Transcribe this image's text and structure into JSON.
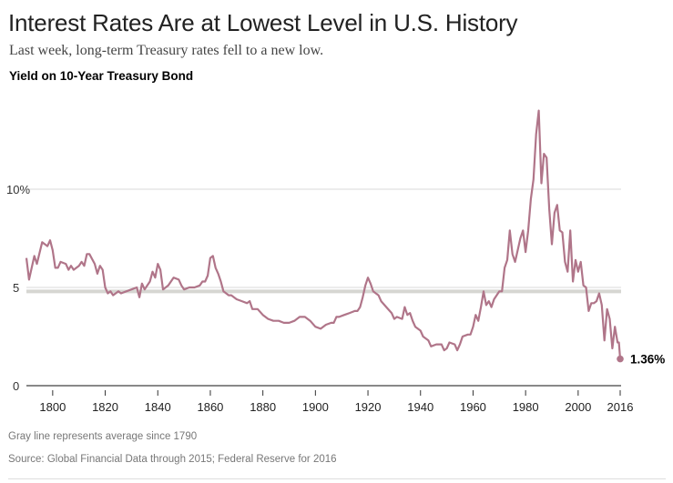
{
  "header": {
    "title": "Interest Rates Are at Lowest Level in U.S. History",
    "subtitle": "Last week, long-term Treasury rates fell to a new low.",
    "chart_label": "Yield on 10-Year Treasury Bond"
  },
  "footer": {
    "note": "Gray line represents average since 1790",
    "source": "Source: Global Financial Data through 2015; Federal Reserve for 2016"
  },
  "colors": {
    "line": "#b07589",
    "average": "#d6d6d2",
    "grid": "#e0e0e0",
    "axis": "#888888"
  },
  "chart_data": {
    "type": "line",
    "title": "Yield on 10-Year Treasury Bond",
    "xlabel": "",
    "ylabel": "",
    "xlim": [
      1790,
      2016
    ],
    "ylim": [
      0,
      14
    ],
    "grid": true,
    "y_ticks": [
      {
        "value": 0,
        "label": "0"
      },
      {
        "value": 5,
        "label": "5"
      },
      {
        "value": 10,
        "label": "10%"
      }
    ],
    "x_ticks": [
      {
        "value": 1800,
        "label": "1800"
      },
      {
        "value": 1820,
        "label": "1820"
      },
      {
        "value": 1840,
        "label": "1840"
      },
      {
        "value": 1860,
        "label": "1860"
      },
      {
        "value": 1880,
        "label": "1880"
      },
      {
        "value": 1900,
        "label": "1900"
      },
      {
        "value": 1920,
        "label": "1920"
      },
      {
        "value": 1940,
        "label": "1940"
      },
      {
        "value": 1960,
        "label": "1960"
      },
      {
        "value": 1980,
        "label": "1980"
      },
      {
        "value": 2000,
        "label": "2000"
      },
      {
        "value": 2016,
        "label": "2016"
      }
    ],
    "average": {
      "label": "Average since 1790",
      "value": 4.8
    },
    "end_label": {
      "year": 2016,
      "value": 1.36,
      "label": "1.36%"
    },
    "series": [
      {
        "name": "10-Year Treasury yield",
        "points": [
          [
            1790,
            6.5
          ],
          [
            1791,
            5.4
          ],
          [
            1793,
            6.6
          ],
          [
            1794,
            6.2
          ],
          [
            1796,
            7.3
          ],
          [
            1798,
            7.1
          ],
          [
            1799,
            7.4
          ],
          [
            1800,
            6.9
          ],
          [
            1801,
            6.0
          ],
          [
            1802,
            6.0
          ],
          [
            1803,
            6.3
          ],
          [
            1805,
            6.2
          ],
          [
            1806,
            5.9
          ],
          [
            1807,
            6.1
          ],
          [
            1808,
            5.9
          ],
          [
            1810,
            6.1
          ],
          [
            1811,
            6.3
          ],
          [
            1812,
            6.1
          ],
          [
            1813,
            6.7
          ],
          [
            1814,
            6.7
          ],
          [
            1816,
            6.2
          ],
          [
            1817,
            5.7
          ],
          [
            1818,
            6.1
          ],
          [
            1819,
            5.9
          ],
          [
            1820,
            5.0
          ],
          [
            1821,
            4.7
          ],
          [
            1822,
            4.8
          ],
          [
            1823,
            4.6
          ],
          [
            1825,
            4.8
          ],
          [
            1826,
            4.7
          ],
          [
            1828,
            4.8
          ],
          [
            1830,
            4.9
          ],
          [
            1832,
            5.0
          ],
          [
            1833,
            4.5
          ],
          [
            1834,
            5.2
          ],
          [
            1835,
            4.9
          ],
          [
            1837,
            5.3
          ],
          [
            1838,
            5.8
          ],
          [
            1839,
            5.5
          ],
          [
            1840,
            6.2
          ],
          [
            1841,
            5.9
          ],
          [
            1842,
            4.9
          ],
          [
            1844,
            5.1
          ],
          [
            1846,
            5.5
          ],
          [
            1848,
            5.4
          ],
          [
            1849,
            5.1
          ],
          [
            1850,
            4.9
          ],
          [
            1852,
            5.0
          ],
          [
            1854,
            5.0
          ],
          [
            1856,
            5.1
          ],
          [
            1857,
            5.3
          ],
          [
            1858,
            5.3
          ],
          [
            1859,
            5.6
          ],
          [
            1860,
            6.5
          ],
          [
            1861,
            6.6
          ],
          [
            1862,
            6.0
          ],
          [
            1863,
            5.7
          ],
          [
            1864,
            5.3
          ],
          [
            1865,
            4.8
          ],
          [
            1867,
            4.6
          ],
          [
            1868,
            4.6
          ],
          [
            1870,
            4.4
          ],
          [
            1872,
            4.3
          ],
          [
            1874,
            4.2
          ],
          [
            1875,
            4.3
          ],
          [
            1876,
            3.9
          ],
          [
            1878,
            3.9
          ],
          [
            1880,
            3.6
          ],
          [
            1882,
            3.4
          ],
          [
            1884,
            3.3
          ],
          [
            1886,
            3.3
          ],
          [
            1888,
            3.2
          ],
          [
            1890,
            3.2
          ],
          [
            1892,
            3.3
          ],
          [
            1894,
            3.5
          ],
          [
            1896,
            3.5
          ],
          [
            1898,
            3.3
          ],
          [
            1900,
            3.0
          ],
          [
            1902,
            2.9
          ],
          [
            1904,
            3.1
          ],
          [
            1906,
            3.2
          ],
          [
            1907,
            3.2
          ],
          [
            1908,
            3.5
          ],
          [
            1909,
            3.5
          ],
          [
            1911,
            3.6
          ],
          [
            1913,
            3.7
          ],
          [
            1915,
            3.8
          ],
          [
            1916,
            3.8
          ],
          [
            1917,
            4.0
          ],
          [
            1918,
            4.5
          ],
          [
            1919,
            5.1
          ],
          [
            1920,
            5.5
          ],
          [
            1921,
            5.2
          ],
          [
            1922,
            4.8
          ],
          [
            1923,
            4.7
          ],
          [
            1924,
            4.6
          ],
          [
            1925,
            4.3
          ],
          [
            1927,
            4.0
          ],
          [
            1929,
            3.7
          ],
          [
            1930,
            3.4
          ],
          [
            1931,
            3.5
          ],
          [
            1933,
            3.4
          ],
          [
            1934,
            4.0
          ],
          [
            1935,
            3.6
          ],
          [
            1936,
            3.7
          ],
          [
            1937,
            3.3
          ],
          [
            1938,
            3.0
          ],
          [
            1940,
            2.8
          ],
          [
            1941,
            2.5
          ],
          [
            1943,
            2.3
          ],
          [
            1944,
            2.0
          ],
          [
            1946,
            2.1
          ],
          [
            1948,
            2.1
          ],
          [
            1949,
            1.8
          ],
          [
            1950,
            1.9
          ],
          [
            1951,
            2.2
          ],
          [
            1953,
            2.1
          ],
          [
            1954,
            1.8
          ],
          [
            1955,
            2.1
          ],
          [
            1956,
            2.5
          ],
          [
            1958,
            2.6
          ],
          [
            1959,
            2.6
          ],
          [
            1960,
            3.0
          ],
          [
            1961,
            3.6
          ],
          [
            1962,
            3.3
          ],
          [
            1963,
            4.0
          ],
          [
            1964,
            4.8
          ],
          [
            1965,
            4.1
          ],
          [
            1966,
            4.3
          ],
          [
            1967,
            4.0
          ],
          [
            1968,
            4.4
          ],
          [
            1969,
            4.6
          ],
          [
            1970,
            4.8
          ],
          [
            1971,
            4.8
          ],
          [
            1972,
            6.0
          ],
          [
            1973,
            6.4
          ],
          [
            1974,
            7.9
          ],
          [
            1975,
            6.7
          ],
          [
            1976,
            6.3
          ],
          [
            1977,
            6.9
          ],
          [
            1978,
            7.5
          ],
          [
            1979,
            7.9
          ],
          [
            1980,
            6.8
          ],
          [
            1981,
            7.9
          ],
          [
            1982,
            9.5
          ],
          [
            1983,
            10.5
          ],
          [
            1984,
            12.8
          ],
          [
            1985,
            14.0
          ],
          [
            1986,
            10.3
          ],
          [
            1987,
            11.8
          ],
          [
            1988,
            11.6
          ],
          [
            1989,
            9.0
          ],
          [
            1990,
            7.2
          ],
          [
            1991,
            8.8
          ],
          [
            1992,
            9.2
          ],
          [
            1993,
            7.9
          ],
          [
            1994,
            7.8
          ],
          [
            1995,
            6.3
          ],
          [
            1996,
            5.8
          ],
          [
            1997,
            7.9
          ],
          [
            1998,
            5.3
          ],
          [
            1999,
            6.4
          ],
          [
            2000,
            5.8
          ],
          [
            2001,
            6.3
          ],
          [
            2002,
            5.1
          ],
          [
            2003,
            5.0
          ],
          [
            2004,
            3.8
          ],
          [
            2005,
            4.2
          ],
          [
            2006,
            4.2
          ],
          [
            2007,
            4.3
          ],
          [
            2008,
            4.7
          ],
          [
            2009,
            4.1
          ],
          [
            2010,
            2.3
          ],
          [
            2011,
            3.9
          ],
          [
            2012,
            3.4
          ],
          [
            2013,
            1.9
          ],
          [
            2014,
            3.0
          ],
          [
            2015,
            2.2
          ],
          [
            2015.5,
            2.2
          ],
          [
            2016,
            1.36
          ]
        ]
      }
    ]
  }
}
